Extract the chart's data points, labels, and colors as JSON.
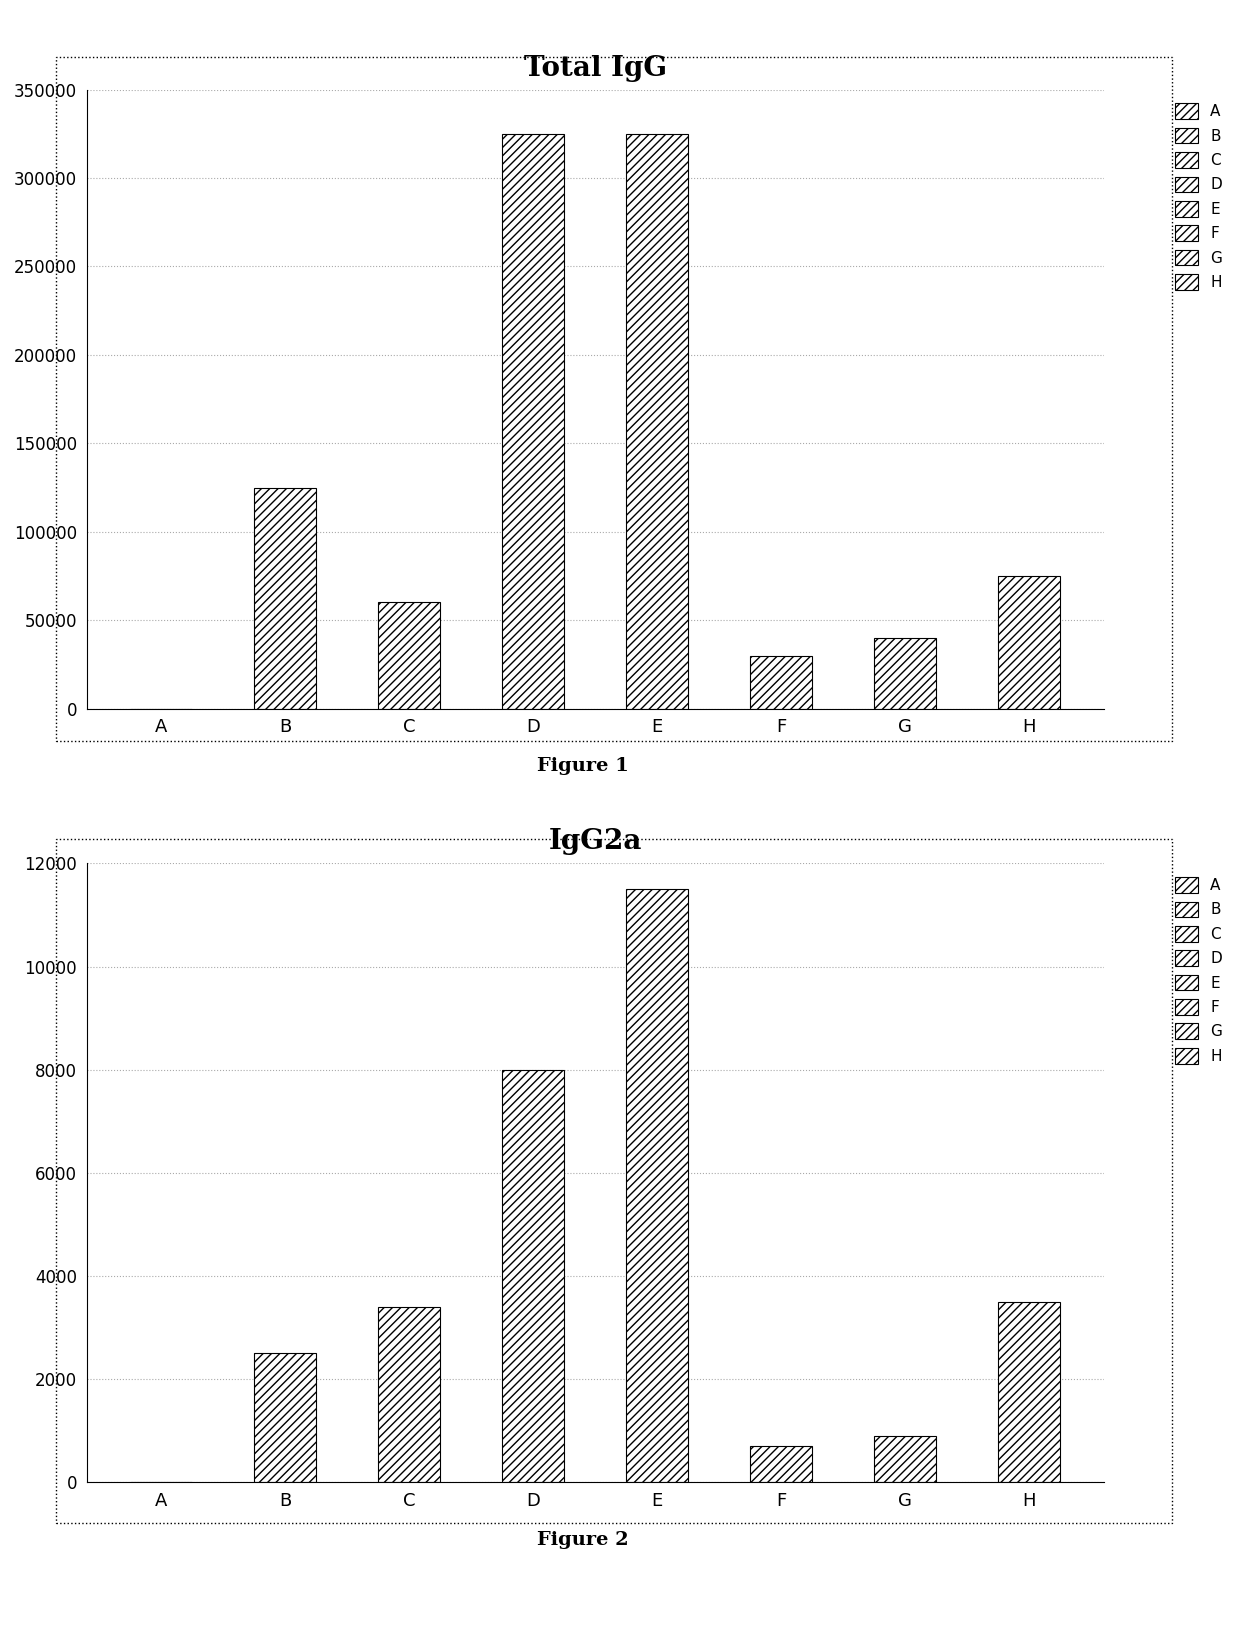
{
  "chart1": {
    "title": "Total IgG",
    "categories": [
      "A",
      "B",
      "C",
      "D",
      "E",
      "F",
      "G",
      "H"
    ],
    "values": [
      0,
      125000,
      60000,
      325000,
      325000,
      30000,
      40000,
      75000
    ],
    "ylim": [
      0,
      350000
    ],
    "yticks": [
      0,
      50000,
      100000,
      150000,
      200000,
      250000,
      300000,
      350000
    ],
    "figure_label": "Figure 1"
  },
  "chart2": {
    "title": "IgG2a",
    "categories": [
      "A",
      "B",
      "C",
      "D",
      "E",
      "F",
      "G",
      "H"
    ],
    "values": [
      0,
      2500,
      3400,
      8000,
      11500,
      700,
      900,
      3500
    ],
    "ylim": [
      0,
      12000
    ],
    "yticks": [
      0,
      2000,
      4000,
      6000,
      8000,
      10000,
      12000
    ],
    "figure_label": "Figure 2"
  },
  "legend_labels": [
    "A",
    "B",
    "C",
    "D",
    "E",
    "F",
    "G",
    "H"
  ],
  "bar_color": "#000000",
  "hatch_pattern": "////",
  "background_color": "#ffffff",
  "border_color": "#000000",
  "grid_color": "#aaaaaa",
  "title_fontsize": 20,
  "tick_fontsize": 12,
  "legend_fontsize": 11,
  "figure_label_fontsize": 14
}
